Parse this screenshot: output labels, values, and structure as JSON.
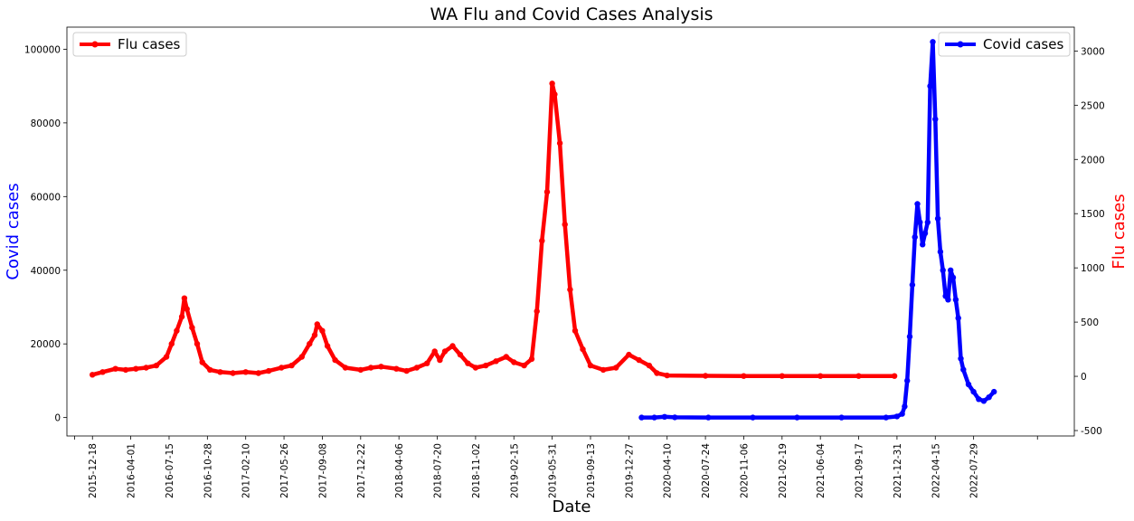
{
  "chart_data": {
    "type": "line",
    "title": "WA Flu and Covid Cases Analysis",
    "xlabel": "Date",
    "ylabel_left": "Covid cases",
    "ylabel_right": "Flu cases",
    "left_color": "#0000ff",
    "right_color": "#ff0000",
    "x_ticks": [
      "2015-12-18",
      "2016-04-01",
      "2016-07-15",
      "2016-10-28",
      "2017-02-10",
      "2017-05-26",
      "2017-09-08",
      "2017-12-22",
      "2018-04-06",
      "2018-07-20",
      "2018-11-02",
      "2019-02-15",
      "2019-05-31",
      "2019-09-13",
      "2019-12-27",
      "2020-04-10",
      "2020-07-24",
      "2020-11-06",
      "2021-02-19",
      "2021-06-04",
      "2021-09-17",
      "2021-12-31",
      "2022-04-15",
      "2022-07-29"
    ],
    "xlim": [
      "2015-10-09",
      "2023-05-01"
    ],
    "ylim_left": [
      -5000,
      106000
    ],
    "left_ticks": [
      0,
      20000,
      40000,
      60000,
      80000,
      100000
    ],
    "ylim_right": [
      -550,
      3220
    ],
    "right_ticks": [
      -500,
      0,
      500,
      1000,
      1500,
      2000,
      2500,
      3000
    ],
    "grid": false,
    "series": [
      {
        "name": "Flu cases",
        "axis": "right",
        "color": "#ff0000",
        "legend_position": "top-left",
        "points": [
          [
            "2015-12-18",
            15
          ],
          [
            "2016-01-15",
            40
          ],
          [
            "2016-02-19",
            70
          ],
          [
            "2016-03-18",
            60
          ],
          [
            "2016-04-15",
            70
          ],
          [
            "2016-05-13",
            80
          ],
          [
            "2016-06-10",
            100
          ],
          [
            "2016-07-08",
            180
          ],
          [
            "2016-07-22",
            300
          ],
          [
            "2016-08-05",
            420
          ],
          [
            "2016-08-19",
            550
          ],
          [
            "2016-08-26",
            720
          ],
          [
            "2016-09-02",
            620
          ],
          [
            "2016-09-16",
            450
          ],
          [
            "2016-09-30",
            300
          ],
          [
            "2016-10-14",
            130
          ],
          [
            "2016-11-04",
            60
          ],
          [
            "2016-12-02",
            40
          ],
          [
            "2017-01-06",
            30
          ],
          [
            "2017-02-10",
            40
          ],
          [
            "2017-03-17",
            30
          ],
          [
            "2017-04-14",
            50
          ],
          [
            "2017-05-19",
            80
          ],
          [
            "2017-06-16",
            100
          ],
          [
            "2017-07-14",
            180
          ],
          [
            "2017-08-04",
            300
          ],
          [
            "2017-08-18",
            380
          ],
          [
            "2017-08-25",
            480
          ],
          [
            "2017-09-08",
            420
          ],
          [
            "2017-09-22",
            280
          ],
          [
            "2017-10-13",
            150
          ],
          [
            "2017-11-10",
            80
          ],
          [
            "2017-12-22",
            60
          ],
          [
            "2018-01-19",
            80
          ],
          [
            "2018-02-16",
            90
          ],
          [
            "2018-03-30",
            70
          ],
          [
            "2018-04-27",
            50
          ],
          [
            "2018-05-25",
            80
          ],
          [
            "2018-06-22",
            120
          ],
          [
            "2018-07-13",
            230
          ],
          [
            "2018-07-27",
            150
          ],
          [
            "2018-08-10",
            230
          ],
          [
            "2018-08-31",
            280
          ],
          [
            "2018-09-21",
            200
          ],
          [
            "2018-10-12",
            120
          ],
          [
            "2018-11-02",
            80
          ],
          [
            "2018-11-30",
            100
          ],
          [
            "2018-12-28",
            140
          ],
          [
            "2019-01-25",
            180
          ],
          [
            "2019-02-15",
            130
          ],
          [
            "2019-03-15",
            100
          ],
          [
            "2019-04-05",
            160
          ],
          [
            "2019-04-19",
            600
          ],
          [
            "2019-05-03",
            1250
          ],
          [
            "2019-05-17",
            1700
          ],
          [
            "2019-05-31",
            2700
          ],
          [
            "2019-06-07",
            2600
          ],
          [
            "2019-06-21",
            2150
          ],
          [
            "2019-07-05",
            1400
          ],
          [
            "2019-07-19",
            800
          ],
          [
            "2019-08-02",
            420
          ],
          [
            "2019-08-23",
            250
          ],
          [
            "2019-09-13",
            100
          ],
          [
            "2019-10-18",
            60
          ],
          [
            "2019-11-22",
            80
          ],
          [
            "2019-12-27",
            200
          ],
          [
            "2020-01-24",
            150
          ],
          [
            "2020-02-21",
            100
          ],
          [
            "2020-03-13",
            30
          ],
          [
            "2020-04-10",
            8
          ],
          [
            "2020-07-24",
            5
          ],
          [
            "2020-11-06",
            3
          ],
          [
            "2021-02-19",
            3
          ],
          [
            "2021-06-04",
            3
          ],
          [
            "2021-09-17",
            3
          ],
          [
            "2021-12-24",
            3
          ]
        ]
      },
      {
        "name": "Covid cases",
        "axis": "left",
        "color": "#0000ff",
        "legend_position": "top-right",
        "points": [
          [
            "2020-01-31",
            0
          ],
          [
            "2020-03-06",
            0
          ],
          [
            "2020-04-03",
            200
          ],
          [
            "2020-05-01",
            50
          ],
          [
            "2020-08-01",
            0
          ],
          [
            "2020-12-01",
            0
          ],
          [
            "2021-04-01",
            0
          ],
          [
            "2021-08-01",
            0
          ],
          [
            "2021-12-01",
            0
          ],
          [
            "2021-12-31",
            300
          ],
          [
            "2022-01-14",
            1000
          ],
          [
            "2022-01-21",
            3000
          ],
          [
            "2022-01-28",
            10000
          ],
          [
            "2022-02-04",
            22000
          ],
          [
            "2022-02-11",
            36000
          ],
          [
            "2022-02-18",
            49000
          ],
          [
            "2022-02-25",
            58000
          ],
          [
            "2022-03-04",
            53000
          ],
          [
            "2022-03-11",
            47000
          ],
          [
            "2022-03-18",
            50000
          ],
          [
            "2022-03-25",
            53000
          ],
          [
            "2022-04-01",
            90000
          ],
          [
            "2022-04-08",
            102000
          ],
          [
            "2022-04-15",
            81000
          ],
          [
            "2022-04-22",
            54000
          ],
          [
            "2022-04-29",
            45000
          ],
          [
            "2022-05-06",
            40000
          ],
          [
            "2022-05-13",
            33000
          ],
          [
            "2022-05-20",
            32000
          ],
          [
            "2022-05-27",
            40000
          ],
          [
            "2022-06-03",
            38000
          ],
          [
            "2022-06-10",
            32000
          ],
          [
            "2022-06-17",
            27000
          ],
          [
            "2022-06-24",
            16000
          ],
          [
            "2022-07-01",
            13000
          ],
          [
            "2022-07-15",
            9000
          ],
          [
            "2022-07-29",
            7000
          ],
          [
            "2022-08-12",
            5000
          ],
          [
            "2022-08-26",
            4500
          ],
          [
            "2022-09-09",
            5500
          ],
          [
            "2022-09-23",
            7000
          ]
        ]
      }
    ]
  }
}
